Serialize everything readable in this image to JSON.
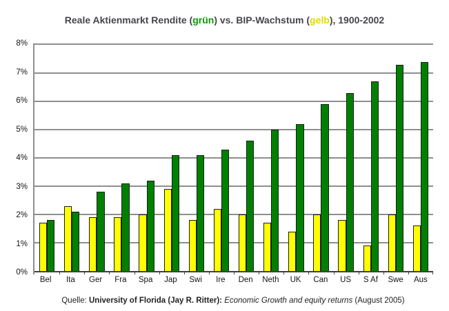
{
  "title": {
    "part1": "Reale Aktienmarkt Rendite (",
    "green_word": "grün",
    "part2": ") vs. BIP-Wachstum (",
    "yellow_word": "gelb",
    "part3": "), 1900-2002"
  },
  "footer": {
    "prefix": "Quelle: ",
    "source_bold": "University of Florida (Jay R. Ritter): ",
    "work_italic": "Economic Growth and equity returns",
    "suffix": " (August 2005)"
  },
  "colors": {
    "bar_green": "#008000",
    "bar_yellow": "#FFFF00",
    "green_text": "#089900",
    "yellow_text": "#E0DB00",
    "grid": "#8E8E8E",
    "axis_text": "#141414",
    "title_text": "#45464C"
  },
  "chart_data": {
    "type": "bar",
    "title": "Reale Aktienmarkt Rendite (grün) vs. BIP-Wachstum (gelb), 1900-2002",
    "categories": [
      "Bel",
      "Ita",
      "Ger",
      "Fra",
      "Spa",
      "Jap",
      "Swi",
      "Ire",
      "Den",
      "Neth",
      "UK",
      "Can",
      "US",
      "S Af",
      "Swe",
      "Aus"
    ],
    "series": [
      {
        "name": "BIP-Wachstum (gelb)",
        "color": "#FFFF00",
        "values": [
          1.7,
          2.3,
          1.9,
          1.9,
          2.0,
          2.9,
          1.8,
          2.2,
          2.0,
          1.7,
          1.4,
          2.0,
          1.8,
          0.9,
          2.0,
          1.6
        ]
      },
      {
        "name": "Reale Aktienmarkt Rendite (grün)",
        "color": "#008000",
        "values": [
          1.8,
          2.1,
          2.8,
          3.1,
          3.2,
          4.1,
          4.1,
          4.3,
          4.6,
          5.0,
          5.2,
          5.9,
          6.3,
          6.7,
          7.3,
          7.4
        ]
      }
    ],
    "xlabel": "",
    "ylabel": "",
    "ylim": [
      0,
      8
    ],
    "ytick_step": 1,
    "yticks": [
      "0%",
      "1%",
      "2%",
      "3%",
      "4%",
      "5%",
      "6%",
      "7%",
      "8%"
    ],
    "grid": true,
    "legend_position": "none"
  }
}
